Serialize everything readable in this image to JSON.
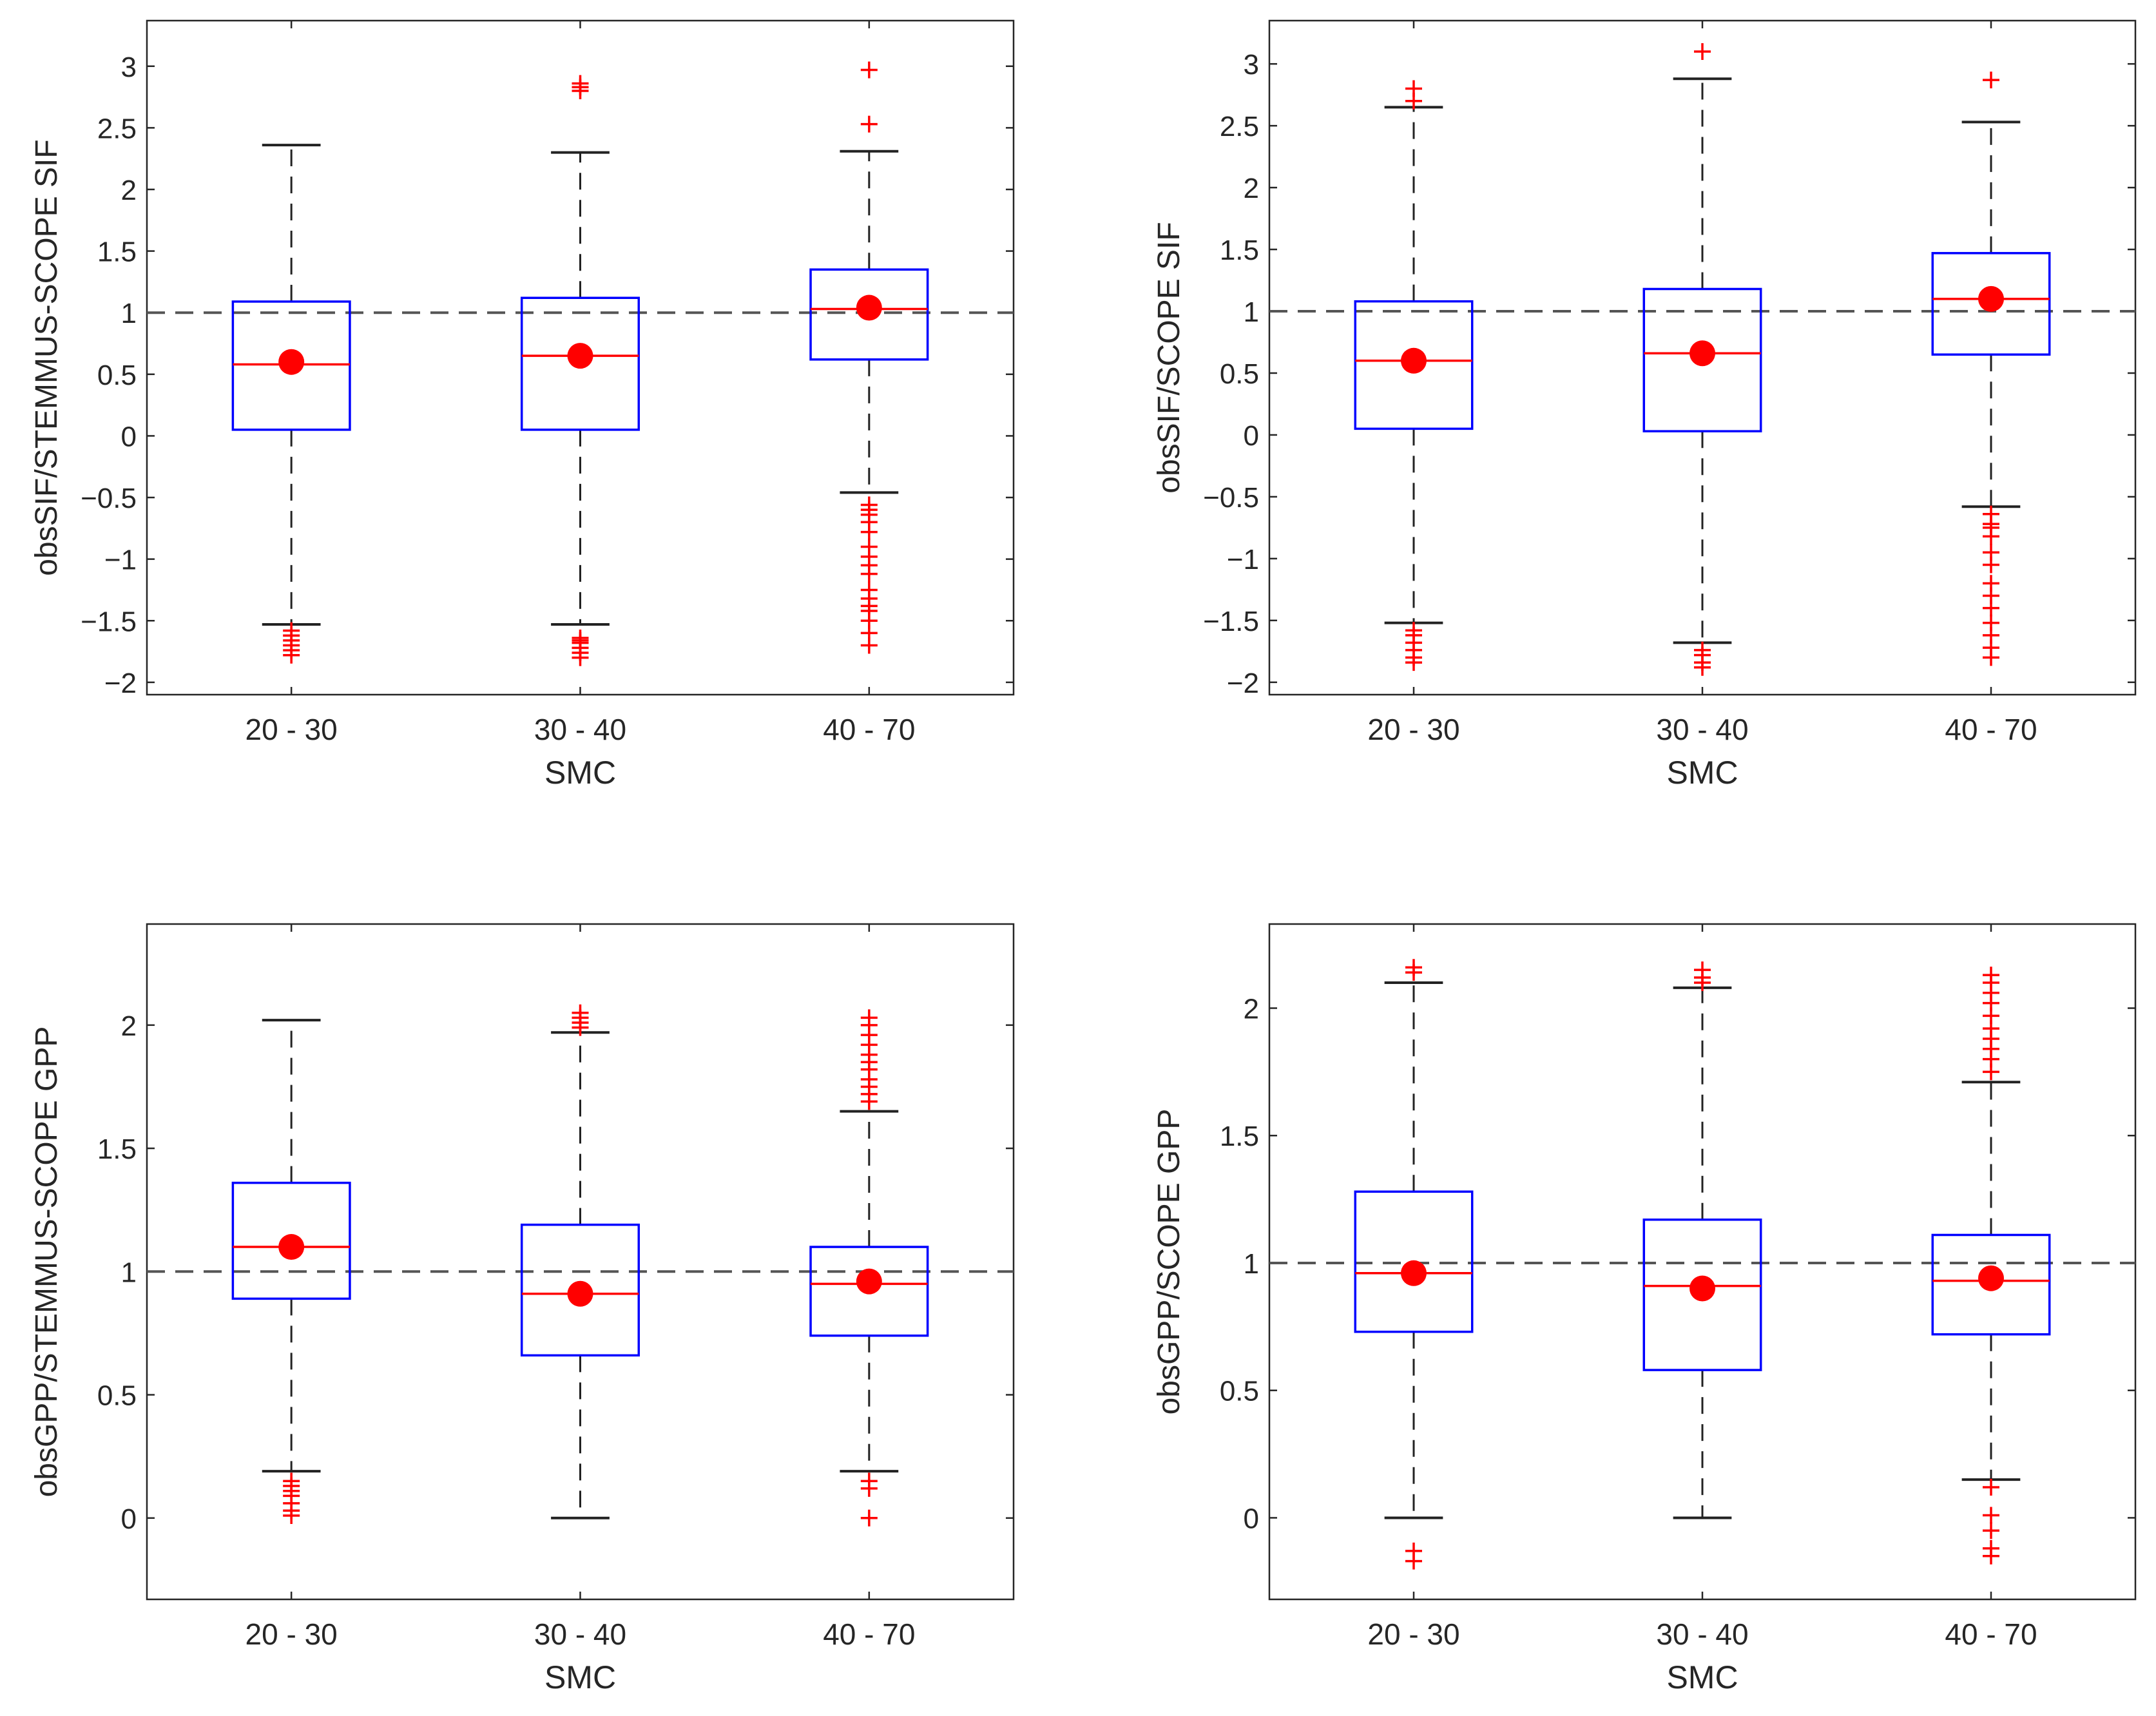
{
  "chart_data": [
    {
      "type": "box",
      "xlabel": "SMC",
      "ylabel": "obsSIF/STEMMUS-SCOPE SIF",
      "categories": [
        "20 - 30",
        "30 - 40",
        "40 - 70"
      ],
      "ylim": [
        -2.1,
        3.37
      ],
      "yticks": [
        -2,
        -1.5,
        -1,
        -0.5,
        0,
        0.5,
        1,
        1.5,
        2,
        2.5,
        3
      ],
      "ytick_labels": [
        "−2",
        "−1.5",
        "−1",
        "−0.5",
        "0",
        "0.5",
        "1",
        "1.5",
        "2",
        "2.5",
        "3"
      ],
      "reference_line": 1,
      "boxes": [
        {
          "q1": 0.05,
          "median": 0.58,
          "q3": 1.09,
          "whisker_low": -1.53,
          "whisker_high": 2.36,
          "mean": 0.6,
          "outliers": [
            -1.58,
            -1.62,
            -1.66,
            -1.7,
            -1.74,
            -1.78
          ]
        },
        {
          "q1": 0.05,
          "median": 0.65,
          "q3": 1.12,
          "whisker_low": -1.53,
          "whisker_high": 2.3,
          "mean": 0.65,
          "outliers": [
            2.8,
            2.83,
            2.86,
            -1.64,
            -1.66,
            -1.68,
            -1.72,
            -1.76,
            -1.8
          ]
        },
        {
          "q1": 0.62,
          "median": 1.03,
          "q3": 1.35,
          "whisker_low": -0.46,
          "whisker_high": 2.31,
          "mean": 1.04,
          "outliers": [
            2.97,
            2.53,
            -0.56,
            -0.6,
            -0.64,
            -0.7,
            -0.78,
            -0.9,
            -0.98,
            -1.05,
            -1.12,
            -1.25,
            -1.32,
            -1.38,
            -1.42,
            -1.5,
            -1.6,
            -1.7
          ]
        }
      ]
    },
    {
      "type": "box",
      "xlabel": "SMC",
      "ylabel": "obsSIF/SCOPE SIF",
      "categories": [
        "20 - 30",
        "30 - 40",
        "40 - 70"
      ],
      "ylim": [
        -2.1,
        3.35
      ],
      "yticks": [
        -2,
        -1.5,
        -1,
        -0.5,
        0,
        0.5,
        1,
        1.5,
        2,
        2.5,
        3
      ],
      "ytick_labels": [
        "−2",
        "−1.5",
        "−1",
        "−0.5",
        "0",
        "0.5",
        "1",
        "1.5",
        "2",
        "2.5",
        "3"
      ],
      "reference_line": 1,
      "boxes": [
        {
          "q1": 0.05,
          "median": 0.6,
          "q3": 1.08,
          "whisker_low": -1.52,
          "whisker_high": 2.65,
          "mean": 0.6,
          "outliers": [
            2.7,
            2.8,
            -1.58,
            -1.62,
            -1.68,
            -1.74,
            -1.8,
            -1.84
          ]
        },
        {
          "q1": 0.03,
          "median": 0.66,
          "q3": 1.18,
          "whisker_low": -1.68,
          "whisker_high": 2.88,
          "mean": 0.66,
          "outliers": [
            3.1,
            -1.74,
            -1.78,
            -1.84,
            -1.88
          ]
        },
        {
          "q1": 0.65,
          "median": 1.1,
          "q3": 1.47,
          "whisker_low": -0.58,
          "whisker_high": 2.53,
          "mean": 1.1,
          "outliers": [
            2.87,
            -0.64,
            -0.72,
            -0.75,
            -0.82,
            -0.95,
            -1.05,
            -1.2,
            -1.3,
            -1.4,
            -1.52,
            -1.62,
            -1.72,
            -1.8
          ]
        }
      ]
    },
    {
      "type": "box",
      "xlabel": "SMC",
      "ylabel": "obsGPP/STEMMUS-SCOPE GPP",
      "categories": [
        "20 - 30",
        "30 - 40",
        "40 - 70"
      ],
      "ylim": [
        -0.33,
        2.41
      ],
      "yticks": [
        0,
        0.5,
        1,
        1.5,
        2
      ],
      "ytick_labels": [
        "0",
        "0.5",
        "1",
        "1.5",
        "2"
      ],
      "reference_line": 1,
      "boxes": [
        {
          "q1": 0.89,
          "median": 1.1,
          "q3": 1.36,
          "whisker_low": 0.19,
          "whisker_high": 2.02,
          "mean": 1.1,
          "outliers": [
            0.15,
            0.13,
            0.11,
            0.09,
            0.06,
            0.03,
            0.01
          ]
        },
        {
          "q1": 0.66,
          "median": 0.91,
          "q3": 1.19,
          "whisker_low": 0.0,
          "whisker_high": 1.97,
          "mean": 0.91,
          "outliers": [
            1.99,
            2.01,
            2.03,
            2.05
          ]
        },
        {
          "q1": 0.74,
          "median": 0.95,
          "q3": 1.1,
          "whisker_low": 0.19,
          "whisker_high": 1.65,
          "mean": 0.96,
          "outliers": [
            1.69,
            1.72,
            1.75,
            1.78,
            1.82,
            1.85,
            1.88,
            1.92,
            1.96,
            2.0,
            2.03,
            0.15,
            0.12,
            0.0
          ]
        }
      ]
    },
    {
      "type": "box",
      "xlabel": "SMC",
      "ylabel": "obsGPP/SCOPE GPP",
      "categories": [
        "20 - 30",
        "30 - 40",
        "40 - 70"
      ],
      "ylim": [
        -0.32,
        2.33
      ],
      "yticks": [
        0,
        0.5,
        1,
        1.5,
        2
      ],
      "ytick_labels": [
        "0",
        "0.5",
        "1",
        "1.5",
        "2"
      ],
      "reference_line": 1,
      "boxes": [
        {
          "q1": 0.73,
          "median": 0.96,
          "q3": 1.28,
          "whisker_low": 0.0,
          "whisker_high": 2.1,
          "mean": 0.96,
          "outliers": [
            2.14,
            2.16,
            -0.13,
            -0.17
          ]
        },
        {
          "q1": 0.58,
          "median": 0.91,
          "q3": 1.17,
          "whisker_low": 0.0,
          "whisker_high": 2.08,
          "mean": 0.9,
          "outliers": [
            2.1,
            2.12,
            2.15
          ]
        },
        {
          "q1": 0.72,
          "median": 0.93,
          "q3": 1.11,
          "whisker_low": 0.15,
          "whisker_high": 1.71,
          "mean": 0.94,
          "outliers": [
            1.75,
            1.8,
            1.84,
            1.88,
            1.92,
            1.97,
            2.02,
            2.06,
            2.1,
            2.13,
            0.12,
            0.01,
            -0.05,
            -0.12,
            -0.15
          ]
        }
      ]
    }
  ]
}
